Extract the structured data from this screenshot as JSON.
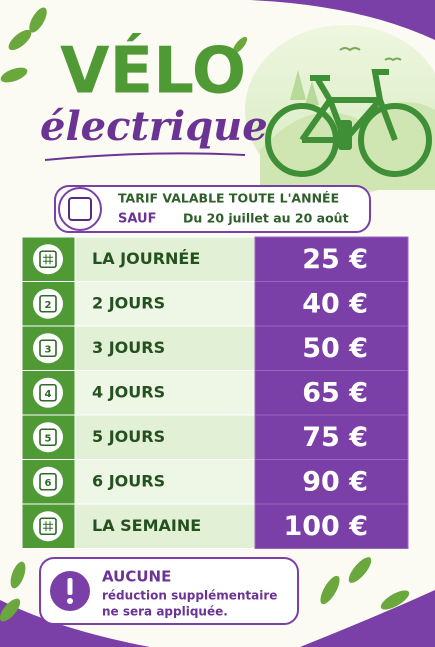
{
  "header": {
    "title": "VÉLO",
    "subtitle": "électrique"
  },
  "validity": {
    "line1": "TARIF VALABLE TOUTE L'ANNÉE",
    "except": "SAUF",
    "dates": "Du 20 juillet au 20 août"
  },
  "table": {
    "rows": [
      {
        "label": "LA JOURNÉE",
        "price": "25 €"
      },
      {
        "icon": "2",
        "label": "2 JOURS",
        "price": "40 €"
      },
      {
        "icon": "3",
        "label": "3 JOURS",
        "price": "50 €"
      },
      {
        "icon": "4",
        "label": "4 JOURS",
        "price": "65 €"
      },
      {
        "icon": "5",
        "label": "5 JOURS",
        "price": "75 €"
      },
      {
        "icon": "6",
        "label": "6 JOURS",
        "price": "90 €"
      },
      {
        "label": "LA SEMAINE",
        "price": "100 €"
      }
    ]
  },
  "note": {
    "title": "AUCUNE",
    "lines": [
      "réduction supplémentaire",
      "ne sera appliquée."
    ]
  }
}
